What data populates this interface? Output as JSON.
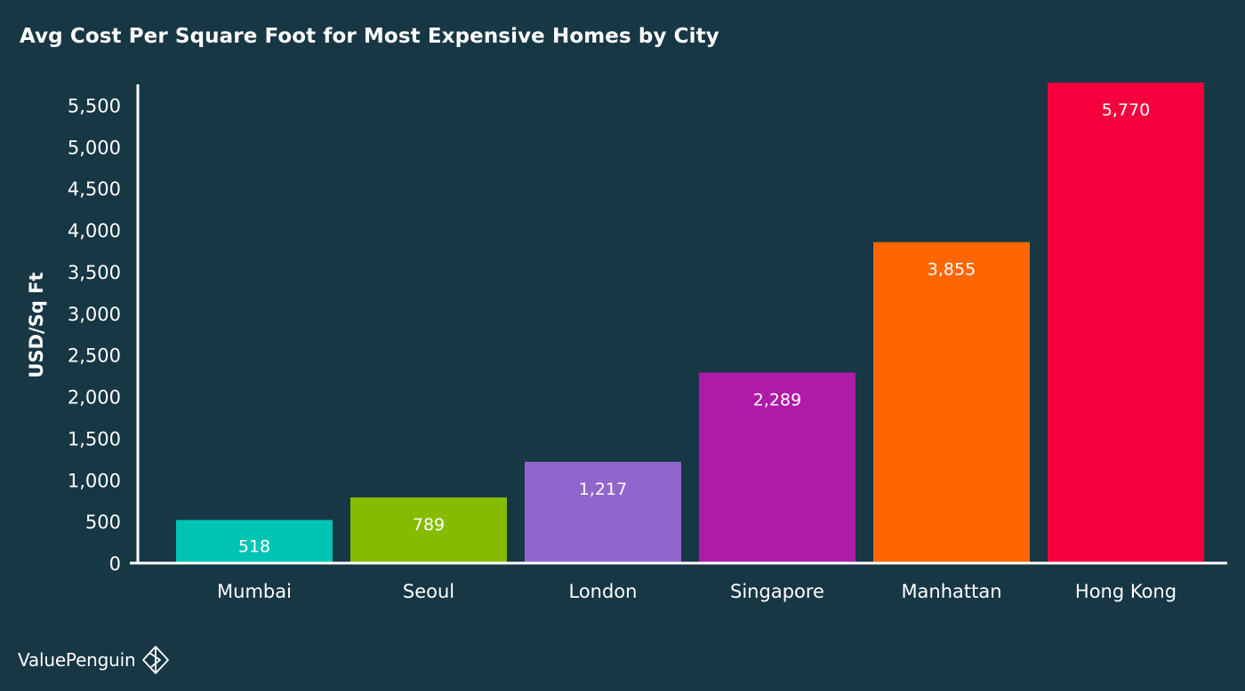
{
  "chart_data": {
    "type": "bar",
    "title": "Avg Cost Per Square Foot for Most Expensive Homes by City",
    "xlabel": "",
    "ylabel": "USD/Sq Ft",
    "ylim": [
      0,
      5750
    ],
    "yticks": [
      0,
      500,
      1000,
      1500,
      2000,
      2500,
      3000,
      3500,
      4000,
      4500,
      5000,
      5500
    ],
    "ytick_labels": [
      "0",
      "500",
      "1,000",
      "1,500",
      "2,000",
      "2,500",
      "3,000",
      "3,500",
      "4,000",
      "4,500",
      "5,000",
      "5,500"
    ],
    "categories": [
      "Mumbai",
      "Seoul",
      "London",
      "Singapore",
      "Manhattan",
      "Hong Kong"
    ],
    "values": [
      518,
      789,
      1217,
      2289,
      3855,
      5770
    ],
    "value_labels": [
      "518",
      "789",
      "1,217",
      "2,289",
      "3,855",
      "5,770"
    ],
    "colors": [
      "#00c4b3",
      "#86bc00",
      "#9166cc",
      "#ae1ba8",
      "#ff6600",
      "#f5003d"
    ],
    "grid": false,
    "legend": "none"
  },
  "branding": {
    "name": "ValuePenguin",
    "icon": "valuepenguin-logo-icon"
  }
}
